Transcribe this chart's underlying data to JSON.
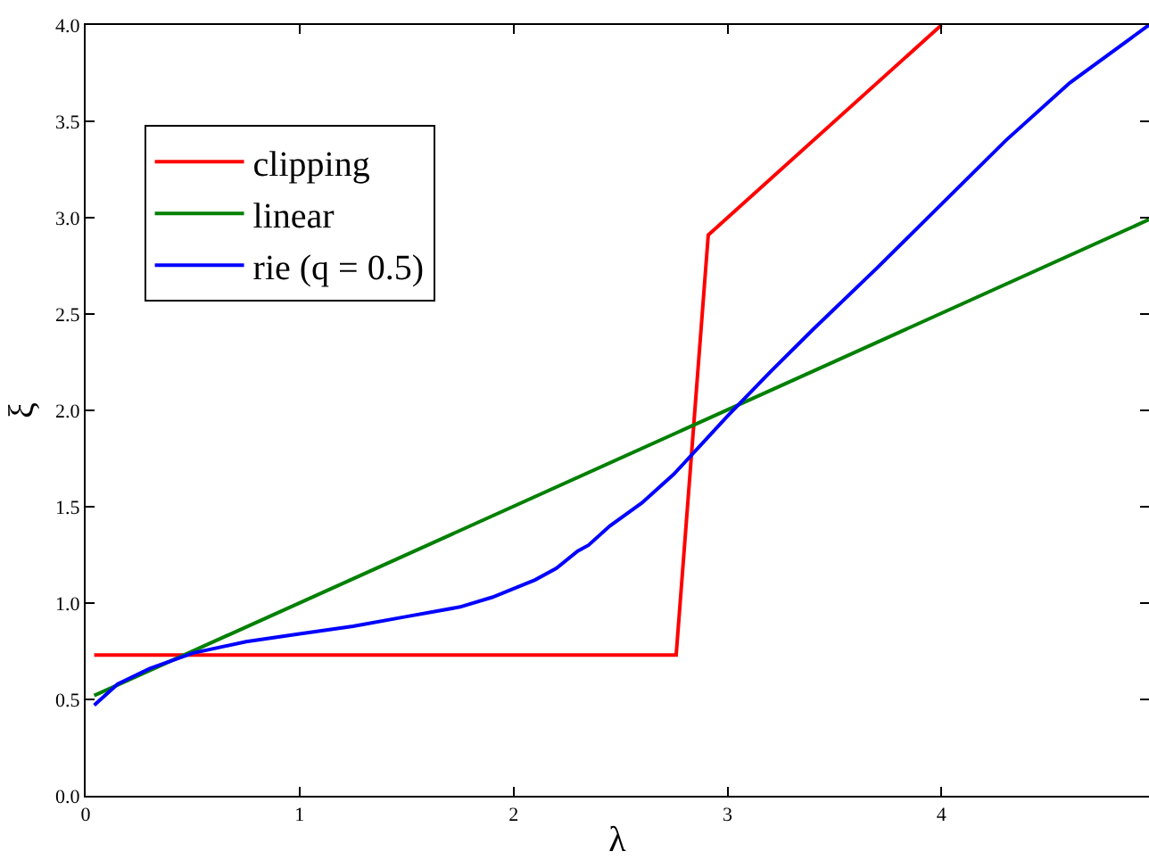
{
  "chart_data": {
    "type": "line",
    "xlabel": "λ",
    "ylabel": "ξ",
    "xlim": [
      0,
      4.97
    ],
    "xticks": [
      0,
      1,
      2,
      3,
      4
    ],
    "ylim": [
      0,
      4
    ],
    "yticks": [
      {
        "value": 0,
        "label": "0.0"
      },
      0.5,
      {
        "value": 1,
        "label": "1.0"
      },
      1.5,
      {
        "value": 2,
        "label": "2.0"
      },
      2.5,
      {
        "value": 3,
        "label": "3.0"
      },
      3.5,
      {
        "value": 4,
        "label": "4.0"
      }
    ],
    "legend": "top left",
    "marker": "none",
    "line_style": "solid",
    "series": [
      {
        "name": "clipping",
        "color": "#ff0000",
        "x": [
          0.04,
          2.76,
          2.91,
          4.0
        ],
        "values": [
          0.73,
          0.73,
          2.91,
          4.0
        ]
      },
      {
        "name": "linear",
        "color": "#008000",
        "x": [
          0.04,
          4.97
        ],
        "values": [
          0.52,
          2.99
        ]
      },
      {
        "name": "rie (q = 0.5)",
        "color": "#0000ff",
        "x": [
          0.04,
          0.15,
          0.3,
          0.5,
          0.75,
          1.0,
          1.25,
          1.5,
          1.75,
          1.9,
          2.1,
          2.2,
          2.3,
          2.35,
          2.45,
          2.6,
          2.75,
          2.9,
          3.0,
          3.2,
          3.4,
          3.7,
          4.0,
          4.3,
          4.6,
          4.97
        ],
        "values": [
          0.47,
          0.58,
          0.66,
          0.74,
          0.8,
          0.84,
          0.88,
          0.93,
          0.98,
          1.03,
          1.12,
          1.18,
          1.27,
          1.3,
          1.4,
          1.52,
          1.67,
          1.85,
          1.97,
          2.2,
          2.42,
          2.74,
          3.07,
          3.4,
          3.7,
          4.0
        ]
      }
    ]
  }
}
